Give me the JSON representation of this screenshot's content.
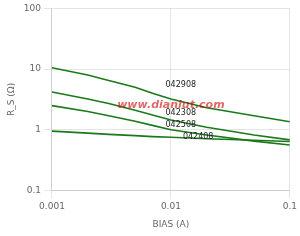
{
  "chart_data": {
    "type": "line",
    "x_label": "BIAS (A)",
    "y_label": "R_S (Ω)",
    "log": true,
    "grid": true,
    "x": [
      0.001,
      0.002,
      0.003,
      0.005,
      0.007,
      0.01,
      0.02,
      0.05,
      0.1
    ],
    "series": [
      {
        "name": "042908",
        "color": "#1a7a1a",
        "values": [
          10.5,
          8.0,
          6.5,
          5.0,
          4.0,
          3.2,
          2.3,
          1.7,
          1.35
        ]
      },
      {
        "name": "042308",
        "color": "#1a7a1a",
        "values": [
          4.2,
          3.2,
          2.7,
          2.1,
          1.75,
          1.45,
          1.1,
          0.82,
          0.68
        ]
      },
      {
        "name": "042508",
        "color": "#1a7a1a",
        "values": [
          2.5,
          2.0,
          1.7,
          1.38,
          1.18,
          1.0,
          0.82,
          0.65,
          0.56
        ]
      },
      {
        "name": "042408",
        "color": "#1a7a1a",
        "values": [
          0.95,
          0.88,
          0.84,
          0.8,
          0.77,
          0.75,
          0.71,
          0.67,
          0.64
        ]
      }
    ],
    "xlim": [
      0.001,
      0.1
    ],
    "xticks": [
      0.001,
      0.01,
      0.1
    ],
    "ylim": [
      0.1,
      100
    ],
    "yticks": [
      0.1,
      1,
      10,
      100
    ],
    "annotations": [
      {
        "text": "042908",
        "x": 0.0085,
        "y": 5.5
      },
      {
        "text": "042308",
        "x": 0.0085,
        "y": 1.9
      },
      {
        "text": "042508",
        "x": 0.0085,
        "y": 1.22
      },
      {
        "text": "042408",
        "x": 0.0119,
        "y": 0.76
      },
      {
        "text": "www.dianlut.com",
        "color": "#cc0000"
      }
    ]
  }
}
